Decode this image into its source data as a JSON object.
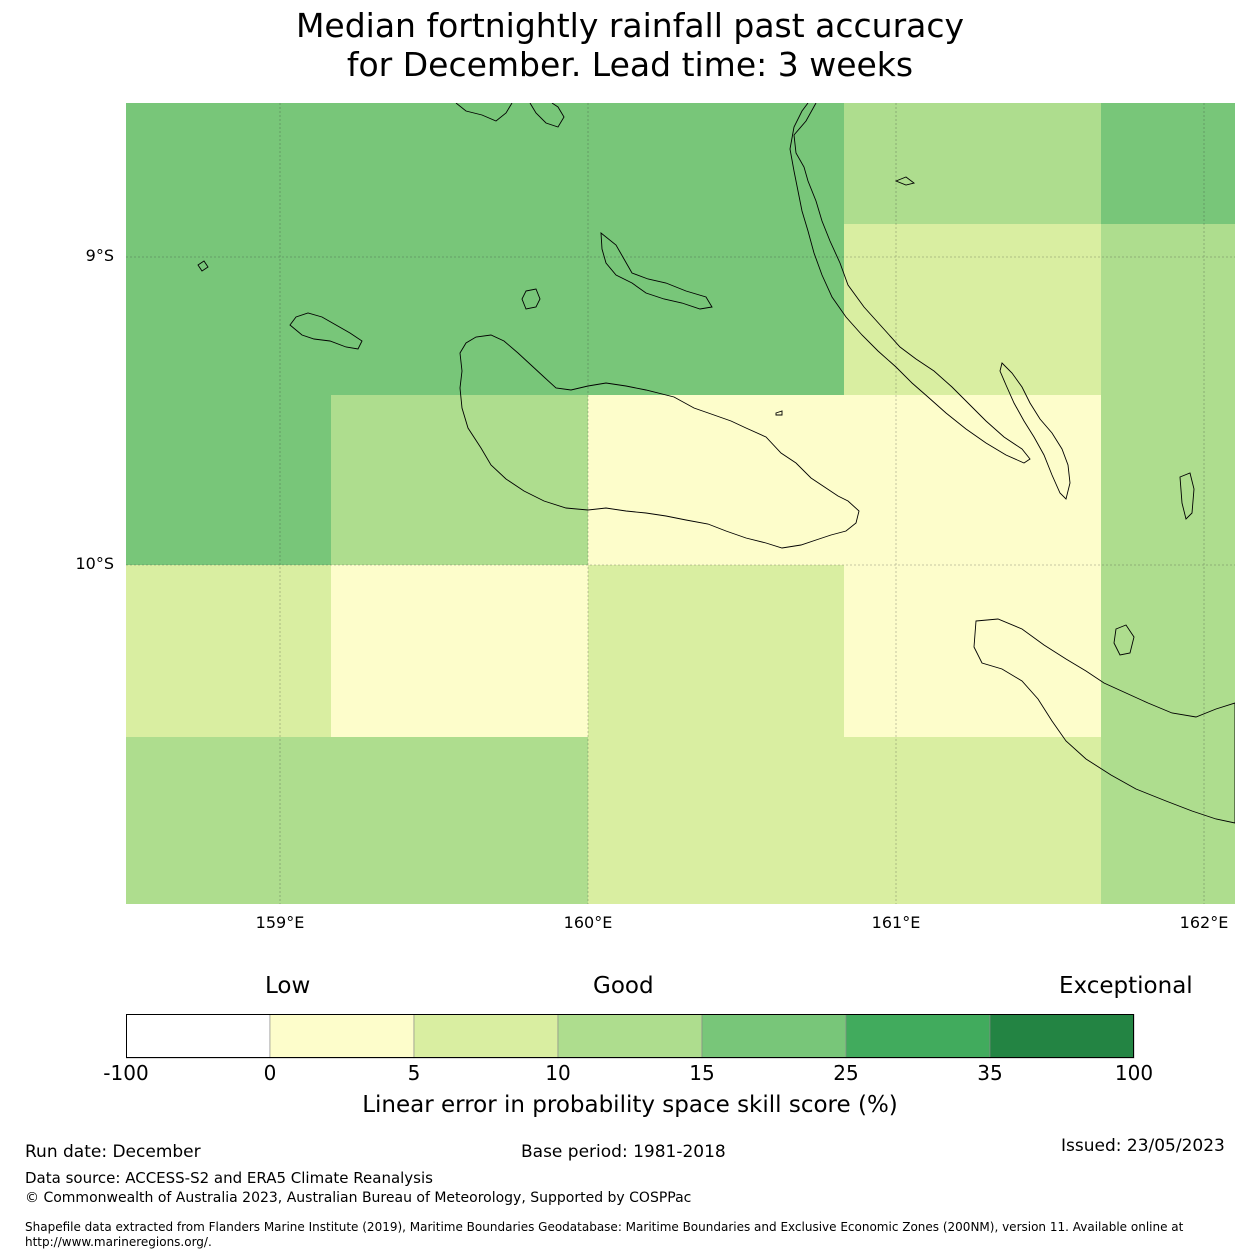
{
  "title": {
    "line1": "Median fortnightly rainfall past accuracy",
    "line2": "for December. Lead time: 3 weeks"
  },
  "map": {
    "lat_labels": [
      "9°S",
      "10°S"
    ],
    "lon_labels": [
      "159°E",
      "160°E",
      "161°E",
      "162°E"
    ]
  },
  "legend": {
    "categories": [
      "Low",
      "Good",
      "Exceptional"
    ],
    "ticks": [
      "-100",
      "0",
      "5",
      "10",
      "15",
      "25",
      "35",
      "100"
    ],
    "colors": [
      "#ffffff",
      "#fdfdcb",
      "#d9eea1",
      "#aedd8e",
      "#78c679",
      "#41ab5d",
      "#238443"
    ],
    "label": "Linear error in probability space skill score (%)"
  },
  "footer": {
    "run_date": "Run date: December",
    "base_period": "Base period: 1981-2018",
    "issued": "Issued: 23/05/2023",
    "data_source": "Data source: ACCESS-S2 and ERA5 Climate Reanalysis",
    "copyright": "© Commonwealth of Australia 2023, Australian Bureau of Meteorology, Supported by COSPPac",
    "shapefile": "Shapefile data extracted from Flanders Marine Institute (2019), Maritime Boundaries Geodatabase: Maritime Boundaries and Exclusive Economic Zones (200NM), version 11. Available online at http://www.marineregions.org/."
  }
}
